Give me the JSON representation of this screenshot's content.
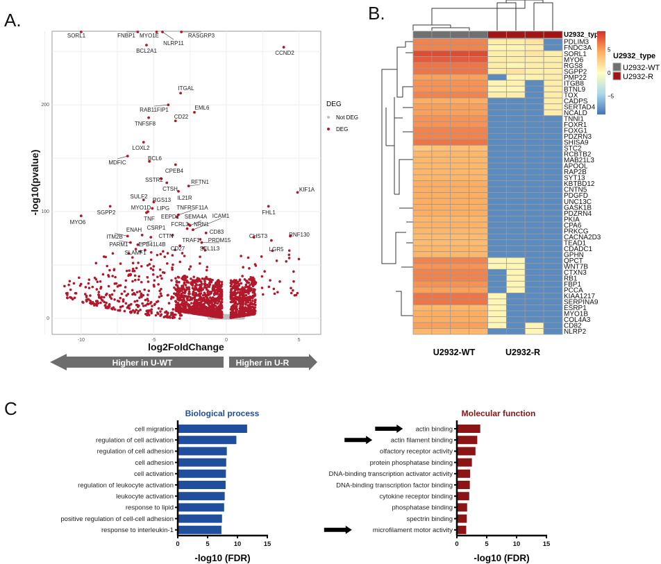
{
  "panels": {
    "a": "A.",
    "b": "B.",
    "c": "C"
  },
  "chart_data": [
    {
      "type": "scatter",
      "xlabel": "log2FoldChange",
      "ylabel": "-log10(pvalue)",
      "xlim": [
        -12,
        6.5
      ],
      "ylim": [
        -15,
        269
      ],
      "xticks": [
        -10,
        -5,
        0,
        5
      ],
      "yticks": [
        0,
        100,
        200
      ],
      "grid": true,
      "legend": {
        "title": "DEG",
        "position": "right",
        "entries": [
          {
            "name": "Not DEG",
            "color": "#bdbdbd"
          },
          {
            "name": "DEG",
            "color": "#b2182b"
          }
        ]
      },
      "labeled_points": [
        {
          "gene": "SORL1",
          "x": -10,
          "y": 269
        },
        {
          "gene": "FNBP1",
          "x": -6.1,
          "y": 269
        },
        {
          "gene": "MYO1E",
          "x": -4.8,
          "y": 269
        },
        {
          "gene": "NLRP11",
          "x": -4.4,
          "y": 269
        },
        {
          "gene": "RASGRP3",
          "x": -3.1,
          "y": 269
        },
        {
          "gene": "BCL2A1",
          "x": -5.5,
          "y": 256
        },
        {
          "gene": "CCND2",
          "x": 3.95,
          "y": 254
        },
        {
          "gene": "ITGAL",
          "x": -3.15,
          "y": 211
        },
        {
          "gene": "RAB11FIP1",
          "x": -4.0,
          "y": 200
        },
        {
          "gene": "EML6",
          "x": -2.2,
          "y": 193
        },
        {
          "gene": "CD22",
          "x": -3.5,
          "y": 185
        },
        {
          "gene": "TNFSF8",
          "x": -5.35,
          "y": 188
        },
        {
          "gene": "LOXL2",
          "x": -5.7,
          "y": 165
        },
        {
          "gene": "MDFIC",
          "x": -6.8,
          "y": 152
        },
        {
          "gene": "BCL6",
          "x": -5.3,
          "y": 147
        },
        {
          "gene": "CPEB4",
          "x": -3.5,
          "y": 144
        },
        {
          "gene": "SSTR2",
          "x": -4.5,
          "y": 131
        },
        {
          "gene": "CTSH",
          "x": -4.1,
          "y": 127
        },
        {
          "gene": "RFTN1",
          "x": -2.6,
          "y": 124
        },
        {
          "gene": "IL21R",
          "x": -3.3,
          "y": 119
        },
        {
          "gene": "KIF1A",
          "x": 4.9,
          "y": 118
        },
        {
          "gene": "SULF2",
          "x": -5.7,
          "y": 111
        },
        {
          "gene": "RGS13",
          "x": -5.0,
          "y": 109
        },
        {
          "gene": "LIPG",
          "x": -5.1,
          "y": 103
        },
        {
          "gene": "MYO1D",
          "x": -5.4,
          "y": 100
        },
        {
          "gene": "SGPP2",
          "x": -8.0,
          "y": 105
        },
        {
          "gene": "FHL1",
          "x": 2.9,
          "y": 105
        },
        {
          "gene": "MYO6",
          "x": -10,
          "y": 96
        },
        {
          "gene": "TNF",
          "x": -5.5,
          "y": 99
        },
        {
          "gene": "TNFRSF11A",
          "x": -3.3,
          "y": 97
        },
        {
          "gene": "EEPD1",
          "x": -3.4,
          "y": 95
        },
        {
          "gene": "SEMA4A",
          "x": -2.6,
          "y": 88
        },
        {
          "gene": "ICAM1",
          "x": -2.3,
          "y": 83
        },
        {
          "gene": "FCRL3",
          "x": -2.7,
          "y": 84
        },
        {
          "gene": "NRN1",
          "x": -2.5,
          "y": 87
        },
        {
          "gene": "ENAH",
          "x": -5.8,
          "y": 78
        },
        {
          "gene": "CSRP1",
          "x": -5.2,
          "y": 76
        },
        {
          "gene": "CTTN",
          "x": -3.7,
          "y": 78
        },
        {
          "gene": "CD83",
          "x": -1.4,
          "y": 80
        },
        {
          "gene": "TRAF1",
          "x": -1.8,
          "y": 74
        },
        {
          "gene": "PRDM15",
          "x": -1.7,
          "y": 71
        },
        {
          "gene": "ITM2B",
          "x": -6.8,
          "y": 77
        },
        {
          "gene": "PARM1",
          "x": -6.6,
          "y": 71
        },
        {
          "gene": "EPB41L4B",
          "x": -6.1,
          "y": 69
        },
        {
          "gene": "SLAMF1",
          "x": -5.6,
          "y": 64
        },
        {
          "gene": "CD27",
          "x": -3.2,
          "y": 68
        },
        {
          "gene": "SEL1L3",
          "x": -1.6,
          "y": 66
        },
        {
          "gene": "CHST3",
          "x": 1.9,
          "y": 76
        },
        {
          "gene": "RNF130",
          "x": 4.4,
          "y": 77
        },
        {
          "gene": "LGR5",
          "x": 3.1,
          "y": 73
        }
      ],
      "direction_arrows": {
        "left": "Higher in U-WT",
        "right": "Higher in U-R",
        "color": "#6d6d6d"
      }
    },
    {
      "type": "heatmap",
      "columns_groups": [
        "U2932-WT",
        "U2932-WT",
        "U2932-WT",
        "U2932-WT",
        "U2932-R",
        "U2932-R",
        "U2932-R",
        "U2932-R"
      ],
      "group_labels": [
        "U2932-WT",
        "U2932-R"
      ],
      "annotation_label": "U2932_typ",
      "annotation_legend": {
        "title": "U2932_type",
        "entries": [
          {
            "name": "U2932-WT",
            "color": "#707070"
          },
          {
            "name": "U2932-R",
            "color": "#a01616"
          }
        ]
      },
      "colorbar": {
        "ticks": [
          5,
          0,
          -5
        ],
        "range": [
          -9,
          9
        ],
        "colors": [
          "#4575b4",
          "#abd9e9",
          "#ffffbf",
          "#fdae61",
          "#d73027"
        ]
      },
      "rows": [
        {
          "gene": "PDLIM3",
          "v": [
            6,
            6,
            6,
            6,
            1,
            1,
            1.5,
            -8
          ]
        },
        {
          "gene": "FNDC3A",
          "v": [
            6,
            6,
            6,
            6,
            0.5,
            0.5,
            1,
            -8
          ]
        },
        {
          "gene": "SORL1",
          "v": [
            8,
            8,
            8,
            8,
            1,
            1,
            1.5,
            1
          ]
        },
        {
          "gene": "MYO6",
          "v": [
            7.5,
            7.5,
            7.5,
            7.5,
            1,
            1,
            1,
            1
          ]
        },
        {
          "gene": "RGS8",
          "v": [
            6.5,
            6.5,
            6.5,
            6.5,
            1,
            0.5,
            1,
            1
          ]
        },
        {
          "gene": "SGPP2",
          "v": [
            6.5,
            6.5,
            6.5,
            6.5,
            1,
            1.5,
            1,
            1
          ]
        },
        {
          "gene": "PMP22",
          "v": [
            5,
            5,
            5,
            5,
            -8,
            0.5,
            0.8,
            1
          ]
        },
        {
          "gene": "ITGB8",
          "v": [
            5.5,
            5.5,
            5.5,
            5.5,
            0.5,
            0.8,
            -8,
            1
          ]
        },
        {
          "gene": "BTNL9",
          "v": [
            5.5,
            5.5,
            5.5,
            5.5,
            0.5,
            0.5,
            -8,
            1
          ]
        },
        {
          "gene": "TOX",
          "v": [
            6,
            6,
            6,
            6,
            1,
            1,
            -8,
            1
          ]
        },
        {
          "gene": "CADPS",
          "v": [
            4.5,
            4.5,
            4.5,
            4.5,
            -8,
            -8,
            -8,
            1
          ]
        },
        {
          "gene": "SERTAD4",
          "v": [
            5,
            5,
            5,
            5,
            -8,
            -8,
            -8,
            1
          ]
        },
        {
          "gene": "NCALD",
          "v": [
            5,
            5,
            5,
            5,
            -8,
            -8,
            -8,
            1
          ]
        },
        {
          "gene": "TNNI1",
          "v": [
            5.5,
            5.5,
            5.5,
            5.5,
            -8,
            -8,
            -8,
            -8
          ]
        },
        {
          "gene": "FOXR1",
          "v": [
            5.5,
            5.5,
            5.5,
            5.5,
            -8,
            -8,
            -8,
            -8
          ]
        },
        {
          "gene": "FOXG1",
          "v": [
            6,
            6,
            6,
            6,
            -8,
            -8,
            -8,
            -8
          ]
        },
        {
          "gene": "PDZRN3",
          "v": [
            6,
            6,
            6,
            6,
            -8,
            -8,
            -8,
            -8
          ]
        },
        {
          "gene": "SHISA9",
          "v": [
            6.5,
            6.5,
            6.5,
            6.5,
            -8,
            -8,
            -8,
            -8
          ]
        },
        {
          "gene": "STC2",
          "v": [
            3,
            3.5,
            3.5,
            3.5,
            -8,
            -8,
            -8,
            -8
          ]
        },
        {
          "gene": "RCBTB2",
          "v": [
            4,
            4,
            4,
            4,
            -8,
            -8,
            -8,
            -8
          ]
        },
        {
          "gene": "MAB21L3",
          "v": [
            4,
            4,
            4,
            4,
            -8,
            -8,
            -8,
            -8
          ]
        },
        {
          "gene": "APOOL",
          "v": [
            4,
            4,
            4,
            4,
            -8,
            -8,
            -8,
            -8
          ]
        },
        {
          "gene": "RAP2B",
          "v": [
            4,
            4,
            4,
            4,
            -8,
            -8,
            -8,
            -8
          ]
        },
        {
          "gene": "SYT13",
          "v": [
            4,
            4,
            4,
            4,
            -8,
            -8,
            -8,
            -8
          ]
        },
        {
          "gene": "KBTBD12",
          "v": [
            4.5,
            4.5,
            4.5,
            4.5,
            -8,
            -8,
            -8,
            -8
          ]
        },
        {
          "gene": "CNTN5",
          "v": [
            4.5,
            4.5,
            4.5,
            4.5,
            -8,
            -8,
            -8,
            -8
          ]
        },
        {
          "gene": "PDGFD",
          "v": [
            4.5,
            4.5,
            4.5,
            4.5,
            -8,
            -8,
            -8,
            -8
          ]
        },
        {
          "gene": "UNC13C",
          "v": [
            4.5,
            4.5,
            4.5,
            4.5,
            -8,
            -8,
            -8,
            -8
          ]
        },
        {
          "gene": "GASK1B",
          "v": [
            4.5,
            4.5,
            4.5,
            4.5,
            -8,
            -8,
            -8,
            -8
          ]
        },
        {
          "gene": "PDZRN4",
          "v": [
            4.5,
            4.5,
            4.5,
            4.5,
            -8,
            -8,
            -8,
            -8
          ]
        },
        {
          "gene": "PKIA",
          "v": [
            4,
            4,
            4,
            4,
            -8,
            -8,
            -8,
            -8
          ]
        },
        {
          "gene": "CPA6",
          "v": [
            4.2,
            4.2,
            4.2,
            4.2,
            -8,
            -8,
            -8,
            -8
          ]
        },
        {
          "gene": "PRKCG",
          "v": [
            4,
            4,
            4,
            4,
            -8,
            -8,
            -8,
            -8
          ]
        },
        {
          "gene": "CACNA2D3",
          "v": [
            3.8,
            3.8,
            3.8,
            3.8,
            -8,
            -8,
            -8,
            -8
          ]
        },
        {
          "gene": "TEAD1",
          "v": [
            3.8,
            3.8,
            3.8,
            3.8,
            -8,
            -8,
            -8,
            -8
          ]
        },
        {
          "gene": "CDADC1",
          "v": [
            4,
            4,
            4,
            4,
            -8,
            -8,
            -8,
            -8
          ]
        },
        {
          "gene": "GPHN",
          "v": [
            4,
            4,
            4,
            4,
            -8,
            -8,
            -8,
            -8
          ]
        },
        {
          "gene": "QPCT",
          "v": [
            6,
            6,
            6,
            6,
            0.5,
            0.5,
            -8,
            -8
          ]
        },
        {
          "gene": "WNT7B",
          "v": [
            5.5,
            5.5,
            5.5,
            5.5,
            0.5,
            0.5,
            -8,
            -8
          ]
        },
        {
          "gene": "CTXN3",
          "v": [
            6,
            6,
            6,
            6,
            -8,
            0.5,
            -8,
            -8
          ]
        },
        {
          "gene": "RB1",
          "v": [
            6,
            6,
            6,
            6,
            -8,
            0.5,
            -8,
            -8
          ]
        },
        {
          "gene": "FBP1",
          "v": [
            5.5,
            5.5,
            5.5,
            5.5,
            -8,
            0.5,
            -8,
            -8
          ]
        },
        {
          "gene": "PCCA",
          "v": [
            5,
            5,
            5,
            5,
            -8,
            0.5,
            -8,
            -8
          ]
        },
        {
          "gene": "KIAA1217",
          "v": [
            6.5,
            6.5,
            6.5,
            6.5,
            0.5,
            -8,
            -8,
            -8
          ]
        },
        {
          "gene": "SERPINA9",
          "v": [
            6.5,
            6.5,
            6.5,
            6.5,
            0.5,
            -8,
            -8,
            -8
          ]
        },
        {
          "gene": "ESRP1",
          "v": [
            4,
            4,
            4,
            4,
            0.5,
            -8,
            -8,
            -8
          ]
        },
        {
          "gene": "MYO1B",
          "v": [
            4.5,
            4.5,
            4.5,
            4.5,
            0.5,
            -8,
            -8,
            -8
          ]
        },
        {
          "gene": "COL4A3",
          "v": [
            4.5,
            4.5,
            4.5,
            4.5,
            0.5,
            -8,
            -8,
            -8
          ]
        },
        {
          "gene": "CD82",
          "v": [
            5,
            5,
            5,
            5,
            0.5,
            -8,
            0.5,
            -8
          ]
        },
        {
          "gene": "NLRP2",
          "v": [
            4,
            4,
            4,
            4,
            -8,
            -8,
            0.5,
            -8
          ]
        }
      ]
    },
    {
      "type": "bar",
      "orientation": "horizontal",
      "title": "Biological process",
      "color": "#1f4e9c",
      "xlabel": "-log10 (FDR)",
      "xlim": [
        0,
        15
      ],
      "xticks": [
        0,
        5,
        10,
        15
      ],
      "categories": [
        "cell migration",
        "regulation of cell activation",
        "regulation of cell adhesion",
        "cell adhesion",
        "cell activation",
        "regulation of leukocyte activation",
        "leukocyte activation",
        "response to lipid",
        "positive regulation of cell-cell adhesion",
        "response to interleukin-1"
      ],
      "values": [
        11.5,
        9.7,
        8.1,
        8.0,
        7.95,
        7.9,
        7.75,
        7.65,
        7.3,
        7.2
      ]
    },
    {
      "type": "bar",
      "orientation": "horizontal",
      "title": "Molecular function",
      "color": "#8b1414",
      "xlabel": "-log10 (FDR)",
      "xlim": [
        0,
        15
      ],
      "xticks": [
        0,
        5,
        10,
        15
      ],
      "categories": [
        "actin binding",
        "actin filament binding",
        "olfactory receptor activity",
        "protein phosphatase binding",
        "DNA-binding transcription activator activity",
        "DNA-binding transcription factor binding",
        "cytokine receptor binding",
        "phosphatase binding",
        "spectrin binding",
        "microfilament motor activity"
      ],
      "values": [
        3.8,
        3.3,
        3.0,
        2.4,
        2.1,
        2.05,
        1.95,
        1.6,
        1.55,
        1.45
      ],
      "arrow_marked": [
        "actin binding",
        "actin filament binding",
        "microfilament motor activity"
      ]
    }
  ]
}
